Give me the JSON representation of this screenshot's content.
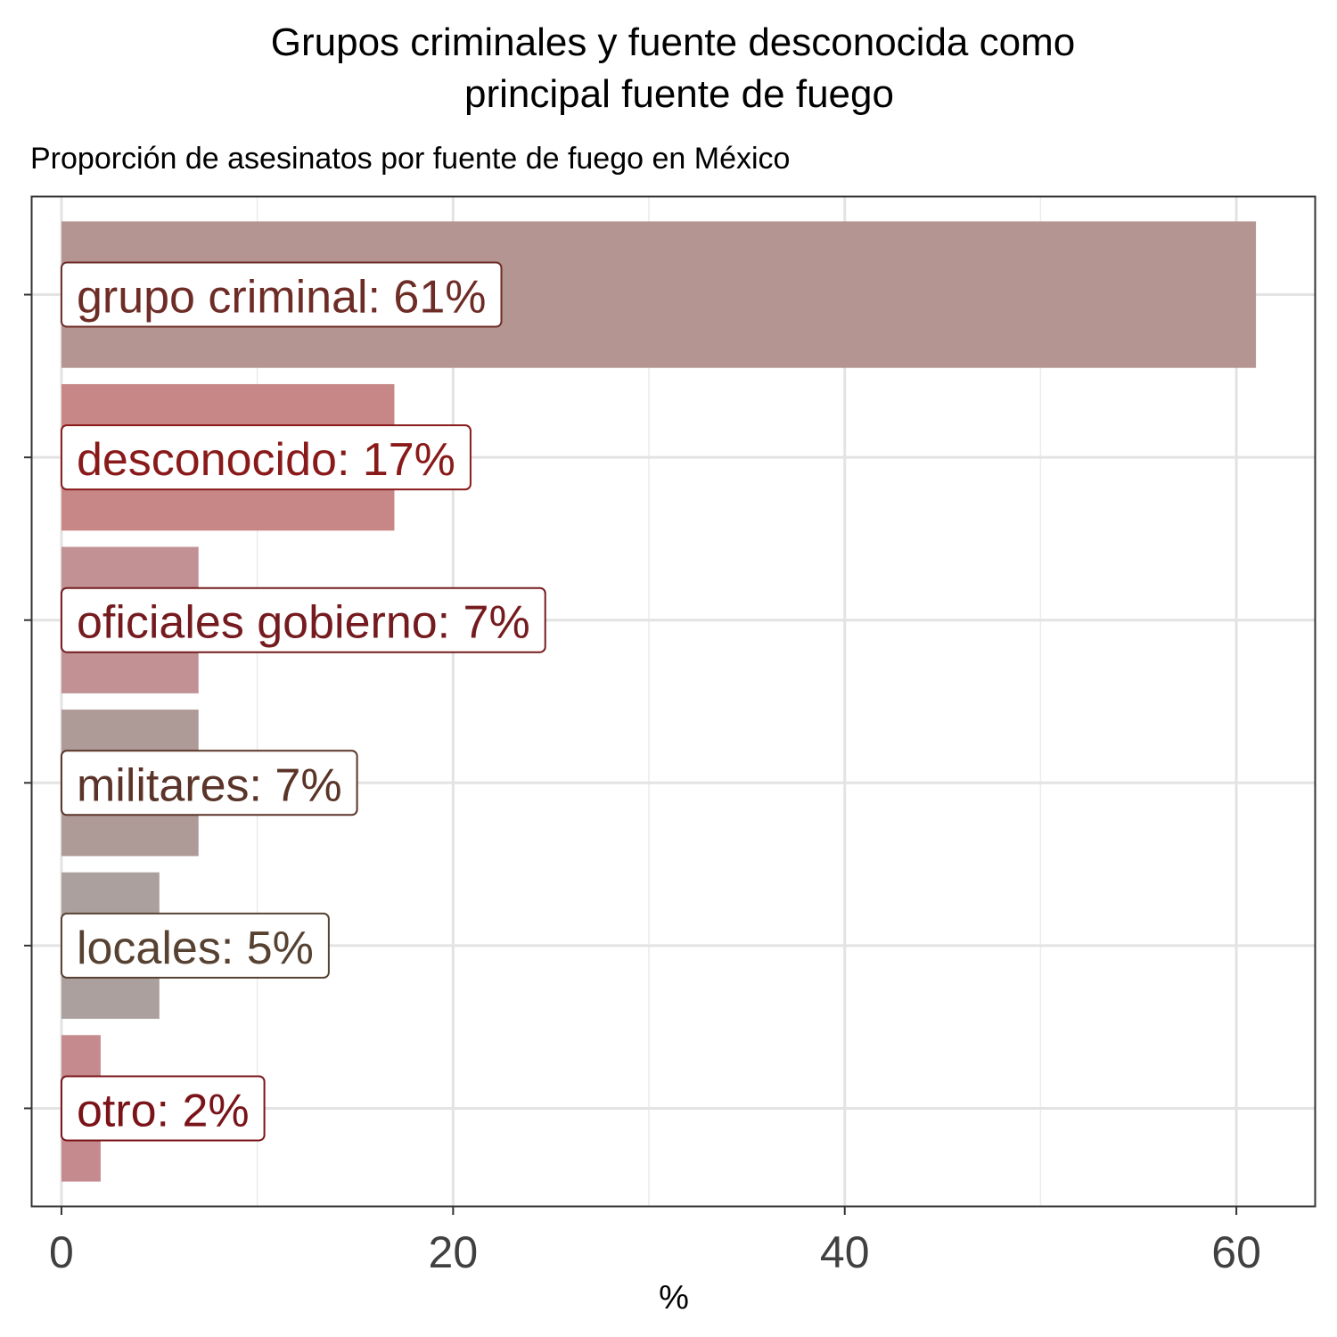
{
  "chart_data": {
    "type": "bar",
    "orientation": "horizontal",
    "title_lines": [
      "Grupos criminales y fuente desconocida como",
      "principal fuente de fuego"
    ],
    "subtitle": "Proporción de asesinatos por fuente de fuego en México",
    "xlabel": "%",
    "ylabel": "",
    "xlim": [
      -1.5,
      64
    ],
    "x_major_ticks": [
      0,
      20,
      40,
      60
    ],
    "x_tick_labels": [
      "0",
      "20",
      "40",
      "60"
    ],
    "x_minor_gridlines": [
      10,
      30,
      50
    ],
    "grid": true,
    "categories": [
      "grupo criminal",
      "desconocido",
      "oficiales gobierno",
      "militares",
      "locales",
      "otro"
    ],
    "values": [
      61,
      17,
      7,
      7,
      5,
      2
    ],
    "labels": [
      "grupo criminal: 61%",
      "desconocido: 17%",
      "oficiales gobierno: 7%",
      "militares: 7%",
      "locales: 5%",
      "otro: 2%"
    ],
    "bar_colors": [
      "#b59592",
      "#c78787",
      "#c29193",
      "#ae9a96",
      "#aba09d",
      "#c48a8e"
    ],
    "label_colors": [
      "#6e2c26",
      "#8a1a1a",
      "#751b1f",
      "#5a3428",
      "#574232",
      "#7a1419"
    ]
  }
}
